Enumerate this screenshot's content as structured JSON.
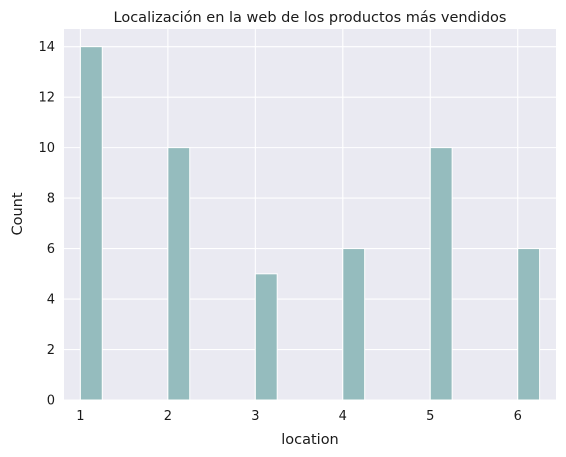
{
  "chart_data": {
    "type": "bar",
    "title": "Localización en la web de los productos más vendidos",
    "xlabel": "location",
    "ylabel": "Count",
    "bars": [
      {
        "x_start": 1.0,
        "x_end": 1.25,
        "value": 14
      },
      {
        "x_start": 2.0,
        "x_end": 2.25,
        "value": 10
      },
      {
        "x_start": 3.0,
        "x_end": 3.25,
        "value": 5
      },
      {
        "x_start": 4.0,
        "x_end": 4.25,
        "value": 6
      },
      {
        "x_start": 5.0,
        "x_end": 5.25,
        "value": 10
      },
      {
        "x_start": 6.0,
        "x_end": 6.25,
        "value": 6
      }
    ],
    "xlim": [
      0.8125,
      6.4375
    ],
    "ylim": [
      0,
      14.7
    ],
    "xticks": [
      1,
      2,
      3,
      4,
      5,
      6
    ],
    "yticks": [
      0,
      2,
      4,
      6,
      8,
      10,
      12,
      14
    ],
    "grid": true,
    "colors": {
      "bar_fill": "#95bcbe",
      "bar_edge": "#ffffff",
      "background": "#eaeaf2",
      "grid": "#ffffff"
    }
  }
}
